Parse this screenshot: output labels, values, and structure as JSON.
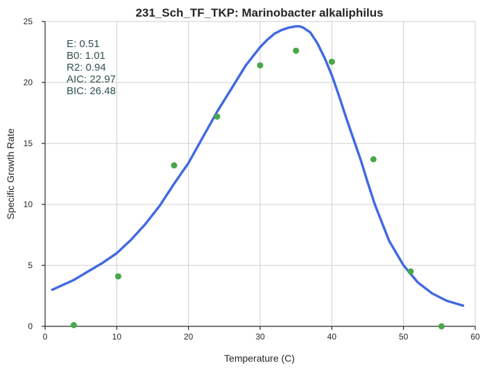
{
  "chart_data": {
    "type": "scatter",
    "title": "231_Sch_TF_TKP: Marinobacter alkaliphilus",
    "xlabel": "Temperature (C)",
    "ylabel": "Specific Growth Rate",
    "xlim": [
      0,
      60
    ],
    "ylim": [
      0,
      25
    ],
    "xticks": [
      0,
      10,
      20,
      30,
      40,
      50,
      60
    ],
    "yticks": [
      0,
      5,
      10,
      15,
      20,
      25
    ],
    "grid": true,
    "points": {
      "color": "#4aa64a",
      "x": [
        4,
        10.2,
        18,
        24,
        30,
        35,
        40,
        45.8,
        51,
        55.3
      ],
      "y": [
        0.1,
        4.1,
        13.2,
        17.2,
        21.4,
        22.6,
        21.7,
        13.7,
        4.5,
        0.0
      ]
    },
    "fit_curve": {
      "color": "#4169e1",
      "x": [
        1,
        4,
        6,
        8,
        10,
        12,
        14,
        16,
        18,
        20,
        22,
        24,
        26,
        28,
        30,
        31,
        32,
        33,
        34,
        35,
        35.5,
        36,
        37,
        38,
        39,
        40,
        41,
        42,
        43,
        44,
        45,
        46,
        48,
        50,
        52,
        54,
        56,
        58.3
      ],
      "y": [
        3.0,
        3.8,
        4.5,
        5.2,
        6.0,
        7.1,
        8.4,
        9.9,
        11.7,
        13.4,
        15.5,
        17.6,
        19.5,
        21.4,
        22.9,
        23.5,
        24.0,
        24.3,
        24.5,
        24.6,
        24.6,
        24.5,
        24.1,
        23.2,
        22.0,
        20.6,
        18.9,
        17.1,
        15.4,
        13.7,
        11.8,
        10.0,
        7.0,
        5.0,
        3.6,
        2.7,
        2.1,
        1.7
      ]
    },
    "annotations": [
      "E:  0.51",
      "B0:  1.01",
      "R2:  0.94",
      "AIC: 22.97",
      "BIC: 26.48"
    ]
  }
}
